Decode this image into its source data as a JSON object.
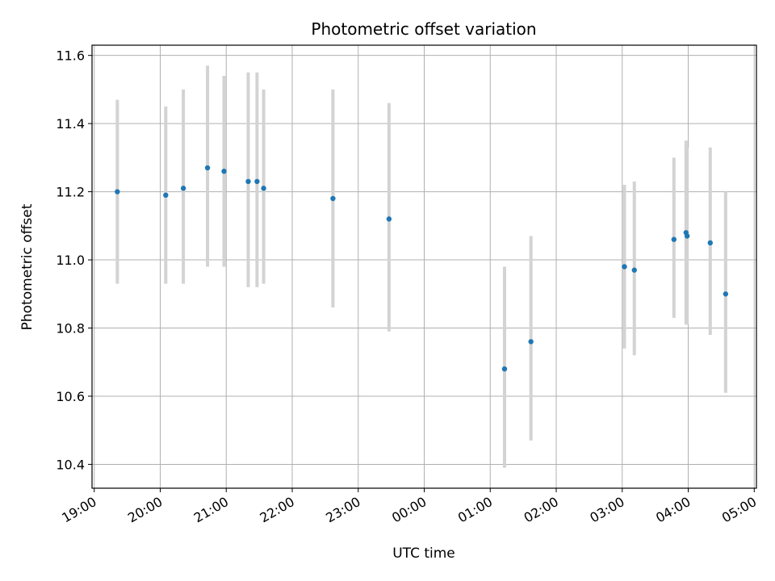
{
  "chart_data": {
    "type": "scatter",
    "title": "Photometric offset variation",
    "xlabel": "UTC time",
    "ylabel": "Photometric offset",
    "xlim": [
      "2000-01-01 18:58",
      "2000-01-02 05:02"
    ],
    "ylim": [
      10.33,
      11.63
    ],
    "grid": true,
    "x_ticks": [
      {
        "t": "2000-01-01 19:00",
        "label": "19:00"
      },
      {
        "t": "2000-01-01 20:00",
        "label": "20:00"
      },
      {
        "t": "2000-01-01 21:00",
        "label": "21:00"
      },
      {
        "t": "2000-01-01 22:00",
        "label": "22:00"
      },
      {
        "t": "2000-01-01 23:00",
        "label": "23:00"
      },
      {
        "t": "2000-01-02 00:00",
        "label": "00:00"
      },
      {
        "t": "2000-01-02 01:00",
        "label": "01:00"
      },
      {
        "t": "2000-01-02 02:00",
        "label": "02:00"
      },
      {
        "t": "2000-01-02 03:00",
        "label": "03:00"
      },
      {
        "t": "2000-01-02 04:00",
        "label": "04:00"
      },
      {
        "t": "2000-01-02 05:00",
        "label": "05:00"
      }
    ],
    "y_ticks": [
      {
        "v": 10.4,
        "label": "10.4"
      },
      {
        "v": 10.6,
        "label": "10.6"
      },
      {
        "v": 10.8,
        "label": "10.8"
      },
      {
        "v": 11.0,
        "label": "11.0"
      },
      {
        "v": 11.2,
        "label": "11.2"
      },
      {
        "v": 11.4,
        "label": "11.4"
      },
      {
        "v": 11.6,
        "label": "11.6"
      }
    ],
    "point_color": "#1f77b4",
    "errorbar_color": "#d3d3d3",
    "points": [
      {
        "x": "2000-01-01 19:21",
        "y": 11.2,
        "ymin": 10.93,
        "ymax": 11.47
      },
      {
        "x": "2000-01-01 20:05",
        "y": 11.19,
        "ymin": 10.93,
        "ymax": 11.45
      },
      {
        "x": "2000-01-01 20:21",
        "y": 11.21,
        "ymin": 10.93,
        "ymax": 11.5
      },
      {
        "x": "2000-01-01 20:43",
        "y": 11.27,
        "ymin": 10.98,
        "ymax": 11.57
      },
      {
        "x": "2000-01-01 20:58",
        "y": 11.26,
        "ymin": 10.98,
        "ymax": 11.54
      },
      {
        "x": "2000-01-01 21:20",
        "y": 11.23,
        "ymin": 10.92,
        "ymax": 11.55
      },
      {
        "x": "2000-01-01 21:28",
        "y": 11.23,
        "ymin": 10.92,
        "ymax": 11.55
      },
      {
        "x": "2000-01-01 21:34",
        "y": 11.21,
        "ymin": 10.93,
        "ymax": 11.5
      },
      {
        "x": "2000-01-01 22:37",
        "y": 11.18,
        "ymin": 10.86,
        "ymax": 11.5
      },
      {
        "x": "2000-01-01 23:28",
        "y": 11.12,
        "ymin": 10.79,
        "ymax": 11.46
      },
      {
        "x": "2000-01-02 01:13",
        "y": 10.68,
        "ymin": 10.39,
        "ymax": 10.98
      },
      {
        "x": "2000-01-02 01:37",
        "y": 10.76,
        "ymin": 10.47,
        "ymax": 11.07
      },
      {
        "x": "2000-01-02 03:02",
        "y": 10.98,
        "ymin": 10.74,
        "ymax": 11.22
      },
      {
        "x": "2000-01-02 03:11",
        "y": 10.97,
        "ymin": 10.72,
        "ymax": 11.23
      },
      {
        "x": "2000-01-02 03:47",
        "y": 11.06,
        "ymin": 10.83,
        "ymax": 11.3
      },
      {
        "x": "2000-01-02 03:58",
        "y": 11.08,
        "ymin": 10.81,
        "ymax": 11.35
      },
      {
        "x": "2000-01-02 03:59",
        "y": 11.07,
        "ymin": 10.81,
        "ymax": 11.33
      },
      {
        "x": "2000-01-02 04:20",
        "y": 11.05,
        "ymin": 10.78,
        "ymax": 11.33
      },
      {
        "x": "2000-01-02 04:34",
        "y": 10.9,
        "ymin": 10.61,
        "ymax": 11.2
      }
    ]
  }
}
